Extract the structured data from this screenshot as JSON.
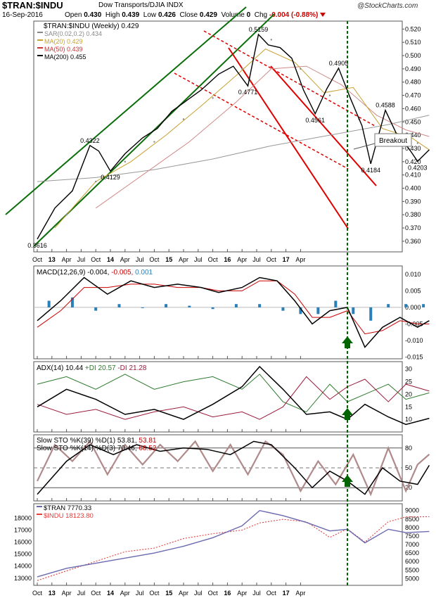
{
  "header": {
    "title": "$TRAN:$INDU",
    "subtitle": "Dow Transports/DJIA INDX",
    "brand": "@StockCharts.com",
    "date": "16-Sep-2016",
    "open_label": "Open",
    "open": "0.430",
    "high_label": "High",
    "high": "0.439",
    "low_label": "Low",
    "low": "0.426",
    "close_label": "Close",
    "close": "0.429",
    "volume_label": "Volume",
    "volume": "0",
    "chg_label": "Chg",
    "chg": "-0.004 (-0.88%)"
  },
  "colors": {
    "price": "#000000",
    "ma20": "#c8a030",
    "ma50": "#d08a8a",
    "ma200": "#999999",
    "channel_green": "#0a6e0a",
    "channel_red": "#e00000",
    "macd_hist": "#2a7fb8",
    "plus_di": "#2d7a2d",
    "minus_di": "#9b1a3a",
    "indu": "#e04040",
    "tran": "#6a6ab0",
    "dashed_vline": "#006400"
  },
  "chart_data": [
    {
      "type": "line",
      "panel": "price",
      "legend": [
        {
          "text": "$TRAN:$INDU (Weekly) 0.429",
          "color": "#000000"
        },
        {
          "text": "SAR(0.02,0.2) 0.434",
          "color": "#888888"
        },
        {
          "text": "MA(20) 0.429",
          "color": "#c8a030"
        },
        {
          "text": "MA(50) 0.439",
          "color": "#cc3333"
        },
        {
          "text": "MA(200) 0.455",
          "color": "#000000"
        }
      ],
      "ylim": [
        0.352,
        0.526
      ],
      "y_ticks": [
        "0.520",
        "0.510",
        "0.500",
        "0.490",
        "0.480",
        "0.470",
        "0.460",
        "0.450",
        "0.440",
        "0.430",
        "0.420",
        "0.410",
        "0.400",
        "0.390",
        "0.380",
        "0.370",
        "0.360"
      ],
      "x_ticks": [
        "Oct",
        "13",
        "Apr",
        "Jul",
        "Oct",
        "14",
        "Apr",
        "Jul",
        "Oct",
        "15",
        "Apr",
        "Jul",
        "Oct",
        "16",
        "Apr",
        "Jul",
        "Oct",
        "17",
        "Apr"
      ],
      "price": [
        [
          0,
          0.3616
        ],
        [
          0.3,
          0.385
        ],
        [
          0.6,
          0.398
        ],
        [
          0.9,
          0.4322
        ],
        [
          1.05,
          0.428
        ],
        [
          1.25,
          0.4129
        ],
        [
          1.5,
          0.426
        ],
        [
          1.8,
          0.438
        ],
        [
          2.05,
          0.445
        ],
        [
          2.3,
          0.458
        ],
        [
          2.55,
          0.466
        ],
        [
          2.8,
          0.474
        ],
        [
          3.1,
          0.486
        ],
        [
          3.35,
          0.492
        ],
        [
          3.6,
          0.4771
        ],
        [
          3.78,
          0.5159
        ],
        [
          3.95,
          0.508
        ],
        [
          4.15,
          0.506
        ],
        [
          4.35,
          0.498
        ],
        [
          4.55,
          0.474
        ],
        [
          4.75,
          0.4561
        ],
        [
          4.95,
          0.475
        ],
        [
          5.15,
          0.4905
        ],
        [
          5.35,
          0.468
        ],
        [
          5.55,
          0.447
        ],
        [
          5.7,
          0.4184
        ],
        [
          5.95,
          0.4588
        ],
        [
          6.15,
          0.44
        ],
        [
          6.35,
          0.43
        ],
        [
          6.5,
          0.4203
        ],
        [
          6.7,
          0.429
        ]
      ],
      "sar": [
        [
          0.5,
          0.38
        ],
        [
          1.0,
          0.405
        ],
        [
          1.5,
          0.42
        ],
        [
          2.0,
          0.435
        ],
        [
          2.5,
          0.452
        ],
        [
          3.0,
          0.468
        ],
        [
          3.5,
          0.49
        ],
        [
          4.0,
          0.512
        ],
        [
          4.5,
          0.49
        ],
        [
          5.0,
          0.47
        ],
        [
          5.5,
          0.452
        ],
        [
          6.0,
          0.44
        ],
        [
          6.5,
          0.434
        ]
      ],
      "ma20": [
        [
          0.3,
          0.37
        ],
        [
          1.0,
          0.405
        ],
        [
          1.6,
          0.42
        ],
        [
          2.2,
          0.44
        ],
        [
          2.8,
          0.462
        ],
        [
          3.4,
          0.485
        ],
        [
          3.9,
          0.505
        ],
        [
          4.4,
          0.495
        ],
        [
          4.9,
          0.472
        ],
        [
          5.4,
          0.476
        ],
        [
          5.9,
          0.445
        ],
        [
          6.4,
          0.438
        ],
        [
          6.7,
          0.429
        ]
      ],
      "ma50": [
        [
          1.0,
          0.385
        ],
        [
          1.8,
          0.41
        ],
        [
          2.6,
          0.435
        ],
        [
          3.4,
          0.465
        ],
        [
          4.0,
          0.49
        ],
        [
          4.6,
          0.492
        ],
        [
          5.2,
          0.478
        ],
        [
          5.8,
          0.455
        ],
        [
          6.3,
          0.444
        ],
        [
          6.7,
          0.439
        ]
      ],
      "ma200": [
        [
          0.0,
          0.405
        ],
        [
          1.0,
          0.408
        ],
        [
          2.0,
          0.414
        ],
        [
          3.0,
          0.422
        ],
        [
          4.0,
          0.432
        ],
        [
          5.0,
          0.44
        ],
        [
          6.0,
          0.448
        ],
        [
          6.7,
          0.455
        ]
      ],
      "annotations": [
        {
          "text": "0.3616",
          "x": 0.0,
          "y": 0.3616
        },
        {
          "text": "0.4322",
          "x": 0.9,
          "y": 0.4322
        },
        {
          "text": "0.4129",
          "x": 1.25,
          "y": 0.4129
        },
        {
          "text": "0.4771",
          "x": 3.6,
          "y": 0.4771
        },
        {
          "text": "0.5159",
          "x": 3.78,
          "y": 0.5159
        },
        {
          "text": "0.4561",
          "x": 4.75,
          "y": 0.4561
        },
        {
          "text": "0.4905",
          "x": 5.15,
          "y": 0.4905
        },
        {
          "text": "0.4184",
          "x": 5.7,
          "y": 0.4184
        },
        {
          "text": "0.4588",
          "x": 5.95,
          "y": 0.4588
        },
        {
          "text": "0.4203",
          "x": 6.5,
          "y": 0.4203
        }
      ],
      "callout": "Breakout"
    },
    {
      "type": "line",
      "panel": "macd",
      "legend": [
        {
          "text": "MACD(12,26,9) -0.004,",
          "color": "#000000"
        },
        {
          "text": "-0.005,",
          "color": "#cc0000"
        },
        {
          "text": "0.001",
          "color": "#2a7fb8"
        }
      ],
      "ylim": [
        -0.0155,
        0.0125
      ],
      "y_ticks": [
        "0.010",
        "0.005",
        "0.000",
        "-0.005",
        "-0.010",
        "-0.015"
      ],
      "macd": [
        [
          0,
          -0.004
        ],
        [
          0.4,
          0.002
        ],
        [
          0.8,
          0.009
        ],
        [
          1.2,
          0.004
        ],
        [
          1.6,
          0.008
        ],
        [
          2.0,
          0.006
        ],
        [
          2.4,
          0.007
        ],
        [
          2.8,
          0.006
        ],
        [
          3.1,
          0.0045
        ],
        [
          3.5,
          0.006
        ],
        [
          3.8,
          0.009
        ],
        [
          4.1,
          0.008
        ],
        [
          4.4,
          0.002
        ],
        [
          4.7,
          -0.005
        ],
        [
          5.0,
          -0.001
        ],
        [
          5.3,
          0.0
        ],
        [
          5.6,
          -0.012
        ],
        [
          5.9,
          -0.006
        ],
        [
          6.2,
          -0.003
        ],
        [
          6.5,
          -0.006
        ],
        [
          6.7,
          -0.004
        ]
      ],
      "signal": [
        [
          0,
          -0.006
        ],
        [
          0.4,
          -0.001
        ],
        [
          0.8,
          0.006
        ],
        [
          1.2,
          0.006
        ],
        [
          1.6,
          0.007
        ],
        [
          2.0,
          0.007
        ],
        [
          2.4,
          0.006
        ],
        [
          2.8,
          0.006
        ],
        [
          3.1,
          0.005
        ],
        [
          3.5,
          0.005
        ],
        [
          3.8,
          0.008
        ],
        [
          4.1,
          0.008
        ],
        [
          4.4,
          0.004
        ],
        [
          4.7,
          -0.003
        ],
        [
          5.0,
          -0.003
        ],
        [
          5.3,
          -0.001
        ],
        [
          5.6,
          -0.008
        ],
        [
          5.9,
          -0.007
        ],
        [
          6.2,
          -0.004
        ],
        [
          6.5,
          -0.005
        ],
        [
          6.7,
          -0.005
        ]
      ],
      "histogram": [
        [
          0.2,
          0.002
        ],
        [
          0.6,
          0.003
        ],
        [
          1.0,
          -0.001
        ],
        [
          1.4,
          0.001
        ],
        [
          1.8,
          0.0
        ],
        [
          2.2,
          0.001
        ],
        [
          2.6,
          0.0005
        ],
        [
          3.0,
          -0.0005
        ],
        [
          3.4,
          0.001
        ],
        [
          3.8,
          0.001
        ],
        [
          4.2,
          -0.001
        ],
        [
          4.5,
          -0.002
        ],
        [
          4.8,
          -0.002
        ],
        [
          5.1,
          0.002
        ],
        [
          5.4,
          -0.002
        ],
        [
          5.7,
          -0.004
        ],
        [
          6.0,
          0.001
        ],
        [
          6.3,
          0.001
        ],
        [
          6.6,
          0.001
        ]
      ]
    },
    {
      "type": "line",
      "panel": "adx",
      "legend": [
        {
          "text": "ADX(14) 10.44",
          "color": "#000000"
        },
        {
          "text": "+DI 20.57",
          "color": "#2d7a2d"
        },
        {
          "text": "-DI 21.28",
          "color": "#9b1a3a"
        }
      ],
      "ylim": [
        5,
        33
      ],
      "y_ticks": [
        "30",
        "25",
        "20",
        "15",
        "10"
      ],
      "adx": [
        [
          0,
          15
        ],
        [
          0.5,
          22
        ],
        [
          1.0,
          18
        ],
        [
          1.5,
          12
        ],
        [
          2.0,
          14
        ],
        [
          2.5,
          10
        ],
        [
          3.0,
          16
        ],
        [
          3.5,
          23
        ],
        [
          3.8,
          31
        ],
        [
          4.2,
          22
        ],
        [
          4.6,
          12
        ],
        [
          5.0,
          13
        ],
        [
          5.3,
          10
        ],
        [
          5.6,
          16
        ],
        [
          6.0,
          11
        ],
        [
          6.3,
          8
        ],
        [
          6.7,
          10.44
        ]
      ],
      "plus_di": [
        [
          0,
          24
        ],
        [
          0.5,
          27
        ],
        [
          1.0,
          22
        ],
        [
          1.5,
          28
        ],
        [
          2.0,
          22
        ],
        [
          2.5,
          25
        ],
        [
          3.0,
          27
        ],
        [
          3.5,
          22
        ],
        [
          3.8,
          28
        ],
        [
          4.2,
          17
        ],
        [
          4.6,
          13
        ],
        [
          5.0,
          24
        ],
        [
          5.3,
          17
        ],
        [
          5.6,
          20
        ],
        [
          6.0,
          24
        ],
        [
          6.3,
          18
        ],
        [
          6.7,
          20.57
        ]
      ],
      "minus_di": [
        [
          0,
          16
        ],
        [
          0.5,
          12
        ],
        [
          1.0,
          14
        ],
        [
          1.5,
          10
        ],
        [
          2.0,
          13
        ],
        [
          2.5,
          15
        ],
        [
          3.0,
          11
        ],
        [
          3.5,
          13
        ],
        [
          3.8,
          10
        ],
        [
          4.2,
          15
        ],
        [
          4.6,
          27
        ],
        [
          5.0,
          18
        ],
        [
          5.3,
          23
        ],
        [
          5.6,
          26
        ],
        [
          6.0,
          17
        ],
        [
          6.3,
          24
        ],
        [
          6.7,
          21.28
        ]
      ]
    },
    {
      "type": "line",
      "panel": "stochastic",
      "legend": [
        {
          "text": "Slow STO %K(39) %D(1) 53.81,",
          "color": "#000000"
        },
        {
          "text": "53.81",
          "color": "#cc0000"
        },
        {
          "text": "Slow STO %K(14) %D(3) 70.46,",
          "color": "#000000"
        },
        {
          "text": "68.52",
          "color": "#cc0000"
        }
      ],
      "ylim": [
        0,
        100
      ],
      "y_ticks": [
        "80",
        "50",
        "20"
      ],
      "sto39": [
        [
          0,
          10
        ],
        [
          0.5,
          60
        ],
        [
          0.9,
          85
        ],
        [
          1.3,
          70
        ],
        [
          1.7,
          85
        ],
        [
          2.1,
          75
        ],
        [
          2.5,
          80
        ],
        [
          2.9,
          78
        ],
        [
          3.3,
          70
        ],
        [
          3.7,
          90
        ],
        [
          4.0,
          85
        ],
        [
          4.4,
          50
        ],
        [
          4.7,
          20
        ],
        [
          5.0,
          45
        ],
        [
          5.3,
          30
        ],
        [
          5.6,
          10
        ],
        [
          5.9,
          50
        ],
        [
          6.2,
          30
        ],
        [
          6.5,
          25
        ],
        [
          6.7,
          53.81
        ]
      ],
      "sto14": [
        [
          0,
          30
        ],
        [
          0.3,
          85
        ],
        [
          0.6,
          60
        ],
        [
          0.9,
          90
        ],
        [
          1.2,
          40
        ],
        [
          1.5,
          85
        ],
        [
          1.8,
          55
        ],
        [
          2.1,
          85
        ],
        [
          2.4,
          60
        ],
        [
          2.7,
          90
        ],
        [
          3.0,
          45
        ],
        [
          3.3,
          85
        ],
        [
          3.6,
          40
        ],
        [
          3.9,
          90
        ],
        [
          4.2,
          70
        ],
        [
          4.5,
          15
        ],
        [
          4.8,
          60
        ],
        [
          5.1,
          25
        ],
        [
          5.4,
          70
        ],
        [
          5.7,
          10
        ],
        [
          6.0,
          80
        ],
        [
          6.3,
          15
        ],
        [
          6.5,
          55
        ],
        [
          6.7,
          70.46
        ]
      ]
    },
    {
      "type": "line",
      "panel": "comparison",
      "legend": [
        {
          "text": "$TRAN 7770.33",
          "color": "#6a6ab0"
        },
        {
          "text": "$INDU 18123.80",
          "color": "#e04040"
        }
      ],
      "y_ticks_left": [
        "18000",
        "17000",
        "16000",
        "15000",
        "14000",
        "13000"
      ],
      "y_ticks_right": [
        "9000",
        "8500",
        "8000",
        "7500",
        "7000",
        "6500",
        "6000",
        "5500",
        "5000"
      ],
      "tran": [
        [
          0,
          5100
        ],
        [
          0.5,
          5600
        ],
        [
          1.0,
          5900
        ],
        [
          1.5,
          6200
        ],
        [
          2.0,
          6500
        ],
        [
          2.5,
          6900
        ],
        [
          3.0,
          7400
        ],
        [
          3.5,
          8100
        ],
        [
          3.8,
          9000
        ],
        [
          4.2,
          8700
        ],
        [
          4.6,
          8300
        ],
        [
          5.0,
          7800
        ],
        [
          5.3,
          7900
        ],
        [
          5.6,
          7100
        ],
        [
          6.0,
          7900
        ],
        [
          6.3,
          7700
        ],
        [
          6.7,
          7770.33
        ]
      ],
      "indu": [
        [
          0,
          12800
        ],
        [
          0.5,
          13600
        ],
        [
          1.0,
          14400
        ],
        [
          1.5,
          15200
        ],
        [
          2.0,
          15500
        ],
        [
          2.5,
          16300
        ],
        [
          3.0,
          16700
        ],
        [
          3.5,
          17000
        ],
        [
          3.8,
          17600
        ],
        [
          4.2,
          17900
        ],
        [
          4.6,
          17700
        ],
        [
          5.0,
          16400
        ],
        [
          5.3,
          17100
        ],
        [
          5.6,
          16000
        ],
        [
          6.0,
          17700
        ],
        [
          6.3,
          18100
        ],
        [
          6.7,
          18123.8
        ]
      ]
    }
  ]
}
